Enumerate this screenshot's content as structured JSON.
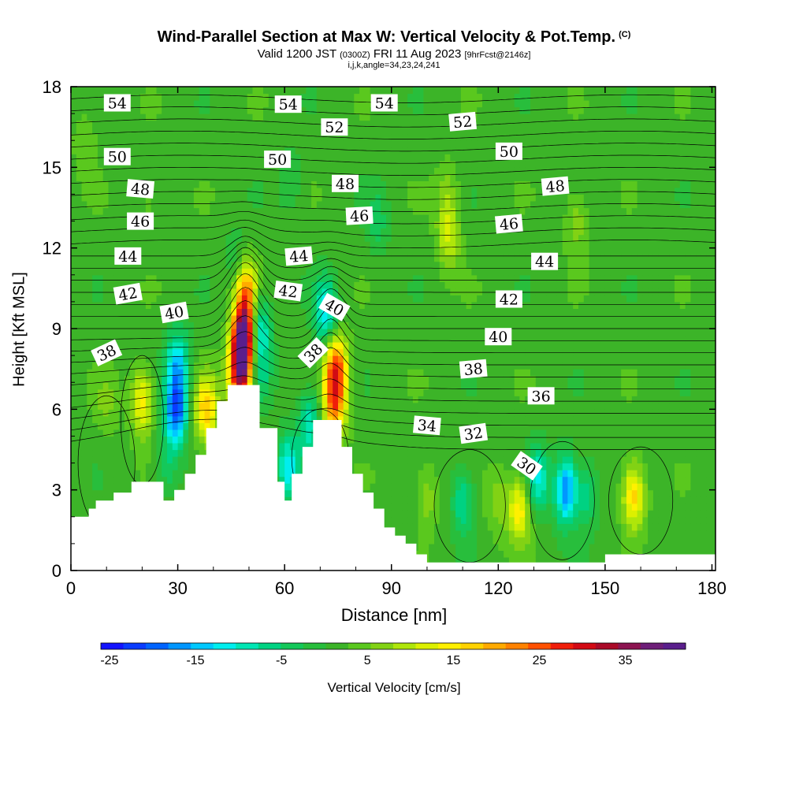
{
  "header": {
    "title": "Wind-Parallel Section at Max W: Vertical Velocity & Pot.Temp.",
    "copyright": "(C)",
    "valid_prefix": "Valid 1200 JST",
    "valid_utc": "(0300Z)",
    "valid_date": "FRI 11 Aug 2023",
    "forecast": "[9hrFcst@2146z]",
    "indices": "i,j,k,angle=34,23,24,241"
  },
  "chart_data": {
    "type": "heatmap",
    "xlabel": "Distance [nm]",
    "ylabel": "Height [Kft MSL]",
    "xlim": [
      0,
      181
    ],
    "ylim": [
      0,
      18
    ],
    "x_ticks": [
      0,
      30,
      60,
      90,
      120,
      150,
      180
    ],
    "y_ticks": [
      0,
      3,
      6,
      9,
      12,
      15,
      18
    ],
    "colorbar": {
      "label": "Vertical Velocity [cm/s]",
      "range": [
        -26,
        42
      ],
      "ticks": [
        -25,
        -15,
        -5,
        5,
        15,
        25,
        35
      ],
      "colors": [
        "#1414ff",
        "#0a3cff",
        "#0064ff",
        "#0096ff",
        "#00c8ff",
        "#00eeee",
        "#00e6b4",
        "#00d282",
        "#14c85a",
        "#28be3c",
        "#3cb428",
        "#5ac81e",
        "#82d214",
        "#afe60a",
        "#dcf000",
        "#fff000",
        "#ffd200",
        "#ffaa00",
        "#ff8200",
        "#ff5000",
        "#f01e0a",
        "#d20a14",
        "#aa0a28",
        "#8c1450",
        "#6e1e78",
        "#5a1e8c"
      ]
    },
    "terrain_profile": [
      [
        0,
        2
      ],
      [
        5,
        2
      ],
      [
        5,
        2.3
      ],
      [
        7,
        2.3
      ],
      [
        7,
        2.6
      ],
      [
        12,
        2.6
      ],
      [
        12,
        2.9
      ],
      [
        17,
        2.9
      ],
      [
        17,
        3.3
      ],
      [
        26,
        3.3
      ],
      [
        26,
        2.6
      ],
      [
        29,
        2.6
      ],
      [
        29,
        3
      ],
      [
        32,
        3
      ],
      [
        32,
        3.6
      ],
      [
        35,
        3.6
      ],
      [
        35,
        4.3
      ],
      [
        38,
        4.3
      ],
      [
        38,
        5.3
      ],
      [
        41,
        5.3
      ],
      [
        41,
        6.3
      ],
      [
        44,
        6.3
      ],
      [
        44,
        6.9
      ],
      [
        53,
        6.9
      ],
      [
        53,
        5.3
      ],
      [
        58,
        5.3
      ],
      [
        58,
        3.3
      ],
      [
        60,
        3.3
      ],
      [
        60,
        2.6
      ],
      [
        62,
        2.6
      ],
      [
        62,
        3.6
      ],
      [
        65,
        3.6
      ],
      [
        65,
        4.6
      ],
      [
        68,
        4.6
      ],
      [
        68,
        5.6
      ],
      [
        76,
        5.6
      ],
      [
        76,
        4.6
      ],
      [
        79,
        4.6
      ],
      [
        79,
        3.6
      ],
      [
        82,
        3.6
      ],
      [
        82,
        2.9
      ],
      [
        85,
        2.9
      ],
      [
        85,
        2.3
      ],
      [
        88,
        2.3
      ],
      [
        88,
        1.6
      ],
      [
        91,
        1.6
      ],
      [
        91,
        1.3
      ],
      [
        94,
        1.3
      ],
      [
        94,
        1
      ],
      [
        97,
        1
      ],
      [
        97,
        0.6
      ],
      [
        100,
        0.6
      ],
      [
        100,
        0.3
      ],
      [
        150,
        0.3
      ],
      [
        150,
        0.6
      ],
      [
        181,
        0.6
      ]
    ],
    "vertical_velocity_centers": [
      {
        "x": 48.5,
        "y": 8.6,
        "value": 40
      },
      {
        "x": 47.5,
        "y": 7.2,
        "value": 28
      },
      {
        "x": 49.5,
        "y": 10.2,
        "value": 20
      },
      {
        "x": 52.5,
        "y": 9.2,
        "value": -16
      },
      {
        "x": 53,
        "y": 7.5,
        "value": -8
      },
      {
        "x": 74.5,
        "y": 7.5,
        "value": 24
      },
      {
        "x": 74,
        "y": 6.0,
        "value": 18
      },
      {
        "x": 71.5,
        "y": 9.6,
        "value": -14
      },
      {
        "x": 67,
        "y": 5.5,
        "value": -12
      },
      {
        "x": 61,
        "y": 3.8,
        "value": -14
      },
      {
        "x": 29.5,
        "y": 6.0,
        "value": -22
      },
      {
        "x": 30,
        "y": 7.8,
        "value": -14
      },
      {
        "x": 38,
        "y": 6.0,
        "value": 16
      },
      {
        "x": 20,
        "y": 6.3,
        "value": 14
      },
      {
        "x": 27,
        "y": 4.0,
        "value": -6
      },
      {
        "x": 10,
        "y": 6.2,
        "value": 4
      },
      {
        "x": 126,
        "y": 2.3,
        "value": 14
      },
      {
        "x": 139,
        "y": 3.0,
        "value": -20
      },
      {
        "x": 158,
        "y": 2.8,
        "value": 16
      },
      {
        "x": 131,
        "y": 3.4,
        "value": -12
      },
      {
        "x": 145,
        "y": 2.8,
        "value": -8
      },
      {
        "x": 110,
        "y": 2.6,
        "value": -10
      },
      {
        "x": 120,
        "y": 2.5,
        "value": 5
      },
      {
        "x": 100,
        "y": 2.8,
        "value": 6
      },
      {
        "x": 106,
        "y": 12.4,
        "value": 9
      },
      {
        "x": 142,
        "y": 13.0,
        "value": 6
      },
      {
        "x": 106,
        "y": 14.0,
        "value": 5
      },
      {
        "x": 86,
        "y": 13.0,
        "value": -5
      },
      {
        "x": 62,
        "y": 14.5,
        "value": -4
      },
      {
        "x": 46,
        "y": 11.7,
        "value": -3
      },
      {
        "x": 4,
        "y": 16.0,
        "value": 4
      },
      {
        "x": 22,
        "y": 13.8,
        "value": 3
      }
    ],
    "theta_labels": [
      {
        "text": "54",
        "x": 13,
        "y": 17.4,
        "angle": 0
      },
      {
        "text": "54",
        "x": 61,
        "y": 17.35,
        "angle": 0
      },
      {
        "text": "54",
        "x": 88,
        "y": 17.4,
        "angle": 0
      },
      {
        "text": "52",
        "x": 74,
        "y": 16.5,
        "angle": 0
      },
      {
        "text": "52",
        "x": 110,
        "y": 16.7,
        "angle": -5
      },
      {
        "text": "50",
        "x": 13,
        "y": 15.4,
        "angle": 0
      },
      {
        "text": "50",
        "x": 58,
        "y": 15.3,
        "angle": 0
      },
      {
        "text": "50",
        "x": 123,
        "y": 15.6,
        "angle": 0
      },
      {
        "text": "48",
        "x": 19.5,
        "y": 14.2,
        "angle": 5
      },
      {
        "text": "48",
        "x": 77,
        "y": 14.4,
        "angle": 0
      },
      {
        "text": "48",
        "x": 136,
        "y": 14.3,
        "angle": -5
      },
      {
        "text": "46",
        "x": 19.5,
        "y": 13.0,
        "angle": 0
      },
      {
        "text": "46",
        "x": 81,
        "y": 13.2,
        "angle": -3
      },
      {
        "text": "46",
        "x": 123,
        "y": 12.9,
        "angle": -5
      },
      {
        "text": "44",
        "x": 16,
        "y": 11.7,
        "angle": 0
      },
      {
        "text": "44",
        "x": 64,
        "y": 11.7,
        "angle": -5
      },
      {
        "text": "44",
        "x": 133,
        "y": 11.5,
        "angle": 0
      },
      {
        "text": "42",
        "x": 16,
        "y": 10.3,
        "angle": -10
      },
      {
        "text": "42",
        "x": 61,
        "y": 10.4,
        "angle": 8
      },
      {
        "text": "42",
        "x": 123,
        "y": 10.1,
        "angle": 0
      },
      {
        "text": "40",
        "x": 29,
        "y": 9.6,
        "angle": -10
      },
      {
        "text": "40",
        "x": 74,
        "y": 9.8,
        "angle": 30
      },
      {
        "text": "40",
        "x": 120,
        "y": 8.7,
        "angle": 0
      },
      {
        "text": "38",
        "x": 10,
        "y": 8.1,
        "angle": -25
      },
      {
        "text": "38",
        "x": 68,
        "y": 8.1,
        "angle": -45
      },
      {
        "text": "38",
        "x": 113,
        "y": 7.5,
        "angle": -5
      },
      {
        "text": "36",
        "x": 132,
        "y": 6.5,
        "angle": 0
      },
      {
        "text": "34",
        "x": 100,
        "y": 5.4,
        "angle": 5
      },
      {
        "text": "32",
        "x": 113,
        "y": 5.1,
        "angle": -8
      },
      {
        "text": "30",
        "x": 128,
        "y": 3.9,
        "angle": 35
      }
    ]
  }
}
